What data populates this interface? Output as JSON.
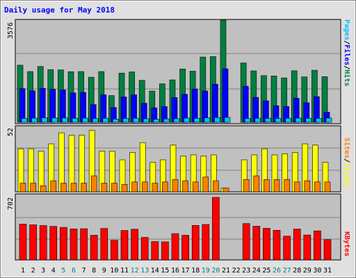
{
  "chart_data": [
    {
      "type": "bar",
      "title": "Daily usage for May 2018",
      "x": [
        1,
        2,
        3,
        4,
        5,
        6,
        7,
        8,
        9,
        10,
        11,
        12,
        13,
        14,
        15,
        16,
        17,
        18,
        19,
        20,
        21,
        22,
        23,
        24,
        25,
        26,
        27,
        28,
        29,
        30,
        31
      ],
      "ylim": [
        0,
        3576
      ],
      "ylabel_parts": [
        "Pages",
        "Files",
        "Hits"
      ],
      "ytick_label": "3576",
      "series": [
        {
          "name": "Hits",
          "color": "#008040",
          "values": [
            2000,
            1775,
            1953,
            1843,
            1834,
            1771,
            1776,
            1580,
            1776,
            936,
            1722,
            1767,
            1470,
            1092,
            1348,
            1483,
            1866,
            1789,
            2284,
            2298,
            3576,
            0,
            2078,
            1801,
            1634,
            1620,
            1555,
            1806,
            1589,
            1822,
            1598
          ]
        },
        {
          "name": "Files",
          "color": "#0000ff",
          "values": [
            1180,
            1102,
            1190,
            1156,
            1137,
            1030,
            1051,
            621,
            963,
            517,
            887,
            963,
            670,
            505,
            554,
            869,
            983,
            1166,
            1096,
            1335,
            1872,
            0,
            1263,
            873,
            752,
            582,
            555,
            842,
            685,
            897,
            357
          ]
        },
        {
          "name": "Pages",
          "color": "#00c0ff",
          "values": [
            137,
            145,
            161,
            151,
            150,
            142,
            145,
            132,
            140,
            114,
            137,
            143,
            123,
            108,
            118,
            126,
            148,
            141,
            159,
            165,
            172,
            0,
            134,
            141,
            139,
            134,
            142,
            148,
            142,
            137,
            151
          ]
        }
      ]
    },
    {
      "type": "bar",
      "x": [
        1,
        2,
        3,
        4,
        5,
        6,
        7,
        8,
        9,
        10,
        11,
        12,
        13,
        14,
        15,
        16,
        17,
        18,
        19,
        20,
        21,
        22,
        23,
        24,
        25,
        26,
        27,
        28,
        29,
        30,
        31
      ],
      "ylim": [
        0,
        52
      ],
      "ylabel_parts": [
        "Sites",
        "Visits"
      ],
      "ytick_label": "52",
      "series": [
        {
          "name": "Visits",
          "color": "#ffff00",
          "values": [
            35,
            35,
            33,
            39,
            48,
            46,
            46,
            50,
            33,
            33,
            26,
            32,
            40,
            24,
            26,
            38,
            29,
            30,
            29,
            30,
            3,
            0,
            26,
            30,
            35,
            30,
            31,
            32,
            39,
            38,
            24
          ]
        },
        {
          "name": "Sites",
          "color": "#ff8000",
          "values": [
            7,
            7,
            5,
            9,
            7,
            7,
            7,
            13,
            7,
            7,
            6,
            8,
            8,
            7,
            8,
            10,
            9,
            8,
            12,
            9,
            3,
            0,
            10,
            13,
            10,
            10,
            10,
            8,
            9,
            8,
            8
          ]
        }
      ]
    },
    {
      "type": "bar",
      "x": [
        1,
        2,
        3,
        4,
        5,
        6,
        7,
        8,
        9,
        10,
        11,
        12,
        13,
        14,
        15,
        16,
        17,
        18,
        19,
        20,
        21,
        22,
        23,
        24,
        25,
        26,
        27,
        28,
        29,
        30,
        31
      ],
      "ylim": [
        0,
        702
      ],
      "ylabel_parts": [
        "KBytes"
      ],
      "ytick_label": "702",
      "series": [
        {
          "name": "KBytes",
          "color": "#ff0000",
          "values": [
            402,
            394,
            386,
            377,
            366,
            348,
            350,
            277,
            353,
            221,
            331,
            345,
            253,
            206,
            203,
            296,
            277,
            388,
            398,
            702,
            0,
            0,
            408,
            378,
            355,
            333,
            267,
            347,
            280,
            326,
            228
          ]
        }
      ]
    }
  ],
  "x_tick_highlight_color": "#008080",
  "x_tick_highlights": [
    5,
    6,
    12,
    13,
    19,
    20,
    26,
    27
  ]
}
